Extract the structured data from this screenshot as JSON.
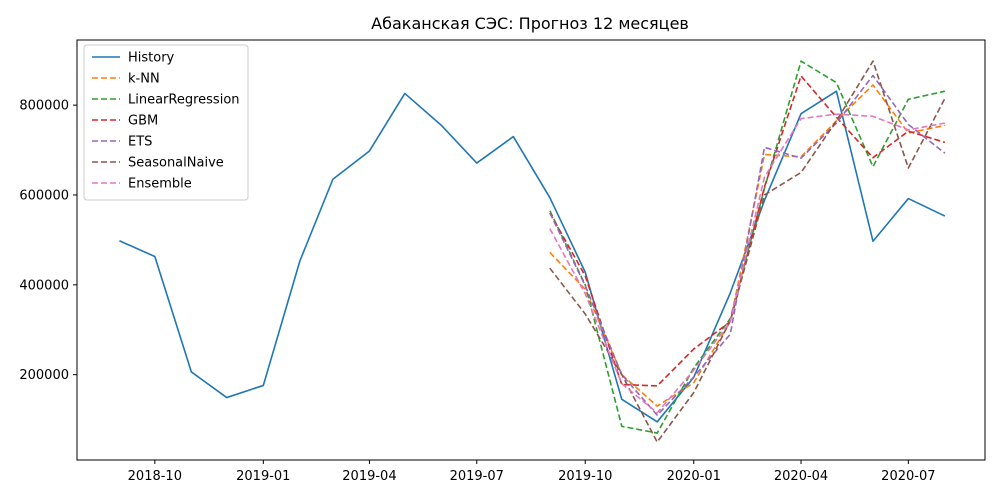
{
  "chart_data": {
    "type": "line",
    "title": "Абаканская СЭС: Прогноз 12 месяцев",
    "xlabel": "",
    "ylabel": "",
    "x_ticks": [
      "2018-10",
      "2019-01",
      "2019-04",
      "2019-07",
      "2019-10",
      "2020-01",
      "2020-04",
      "2020-07"
    ],
    "y_ticks": [
      200000,
      400000,
      600000,
      800000
    ],
    "xlim": [
      "2018-07-27",
      "2020-09-04"
    ],
    "ylim": [
      10000,
      945000
    ],
    "grid": false,
    "legend_position": "upper-left",
    "series": [
      {
        "name": "History",
        "color": "#1f77b4",
        "dash": "solid",
        "x": [
          "2018-09-01",
          "2018-10-01",
          "2018-11-01",
          "2018-12-01",
          "2019-01-01",
          "2019-02-01",
          "2019-03-01",
          "2019-04-01",
          "2019-05-01",
          "2019-06-01",
          "2019-07-01",
          "2019-08-01",
          "2019-09-01",
          "2019-10-01",
          "2019-11-01",
          "2019-12-01",
          "2020-01-01",
          "2020-02-01",
          "2020-03-01",
          "2020-04-01",
          "2020-05-01",
          "2020-06-01",
          "2020-07-01",
          "2020-08-01"
        ],
        "y": [
          498000,
          463000,
          206000,
          149000,
          176000,
          453000,
          635000,
          698000,
          826000,
          755000,
          671000,
          730000,
          594000,
          428000,
          145000,
          95000,
          194000,
          382000,
          588000,
          781000,
          831000,
          497000,
          592000,
          553000
        ]
      },
      {
        "name": "k-NN",
        "color": "#ff7f0e",
        "dash": "dashed",
        "x": [
          "2019-09-01",
          "2019-10-01",
          "2019-11-01",
          "2019-12-01",
          "2020-01-01",
          "2020-02-01",
          "2020-03-01",
          "2020-04-01",
          "2020-05-01",
          "2020-06-01",
          "2020-07-01",
          "2020-08-01"
        ],
        "y": [
          472000,
          390000,
          200000,
          130000,
          182000,
          318000,
          690000,
          685000,
          765000,
          845000,
          738000,
          755000
        ]
      },
      {
        "name": "LinearRegression",
        "color": "#2ca02c",
        "dash": "dashed",
        "x": [
          "2019-09-01",
          "2019-10-01",
          "2019-11-01",
          "2019-12-01",
          "2020-01-01",
          "2020-02-01",
          "2020-03-01",
          "2020-04-01",
          "2020-05-01",
          "2020-06-01",
          "2020-07-01",
          "2020-08-01"
        ],
        "y": [
          565000,
          400000,
          85000,
          70000,
          215000,
          325000,
          615000,
          898000,
          850000,
          663000,
          813000,
          831000
        ]
      },
      {
        "name": "GBM",
        "color": "#d62728",
        "dash": "dashed",
        "x": [
          "2019-09-01",
          "2019-10-01",
          "2019-11-01",
          "2019-12-01",
          "2020-01-01",
          "2020-02-01",
          "2020-03-01",
          "2020-04-01",
          "2020-05-01",
          "2020-06-01",
          "2020-07-01",
          "2020-08-01"
        ],
        "y": [
          560000,
          420000,
          178000,
          175000,
          257000,
          318000,
          618000,
          865000,
          773000,
          683000,
          742000,
          717000
        ]
      },
      {
        "name": "ETS",
        "color": "#9467bd",
        "dash": "dashed",
        "x": [
          "2019-09-01",
          "2019-10-01",
          "2019-11-01",
          "2019-12-01",
          "2020-01-01",
          "2020-02-01",
          "2020-03-01",
          "2020-04-01",
          "2020-05-01",
          "2020-06-01",
          "2020-07-01",
          "2020-08-01"
        ],
        "y": [
          560000,
          398000,
          200000,
          110000,
          195000,
          290000,
          706000,
          682000,
          760000,
          866000,
          757000,
          693000
        ]
      },
      {
        "name": "SeasonalNaive",
        "color": "#8c564b",
        "dash": "dashed",
        "x": [
          "2019-09-01",
          "2019-10-01",
          "2019-11-01",
          "2019-12-01",
          "2020-01-01",
          "2020-02-01",
          "2020-03-01",
          "2020-04-01",
          "2020-05-01",
          "2020-06-01",
          "2020-07-01",
          "2020-08-01"
        ],
        "y": [
          437000,
          335000,
          200000,
          50000,
          160000,
          320000,
          600000,
          650000,
          765000,
          898000,
          660000,
          815000
        ]
      },
      {
        "name": "Ensemble",
        "color": "#e377c2",
        "dash": "dashed",
        "x": [
          "2019-09-01",
          "2019-10-01",
          "2019-11-01",
          "2019-12-01",
          "2020-01-01",
          "2020-02-01",
          "2020-03-01",
          "2020-04-01",
          "2020-05-01",
          "2020-06-01",
          "2020-07-01",
          "2020-08-01"
        ],
        "y": [
          525000,
          380000,
          180000,
          115000,
          210000,
          318000,
          640000,
          770000,
          780000,
          775000,
          745000,
          760000
        ]
      }
    ]
  }
}
